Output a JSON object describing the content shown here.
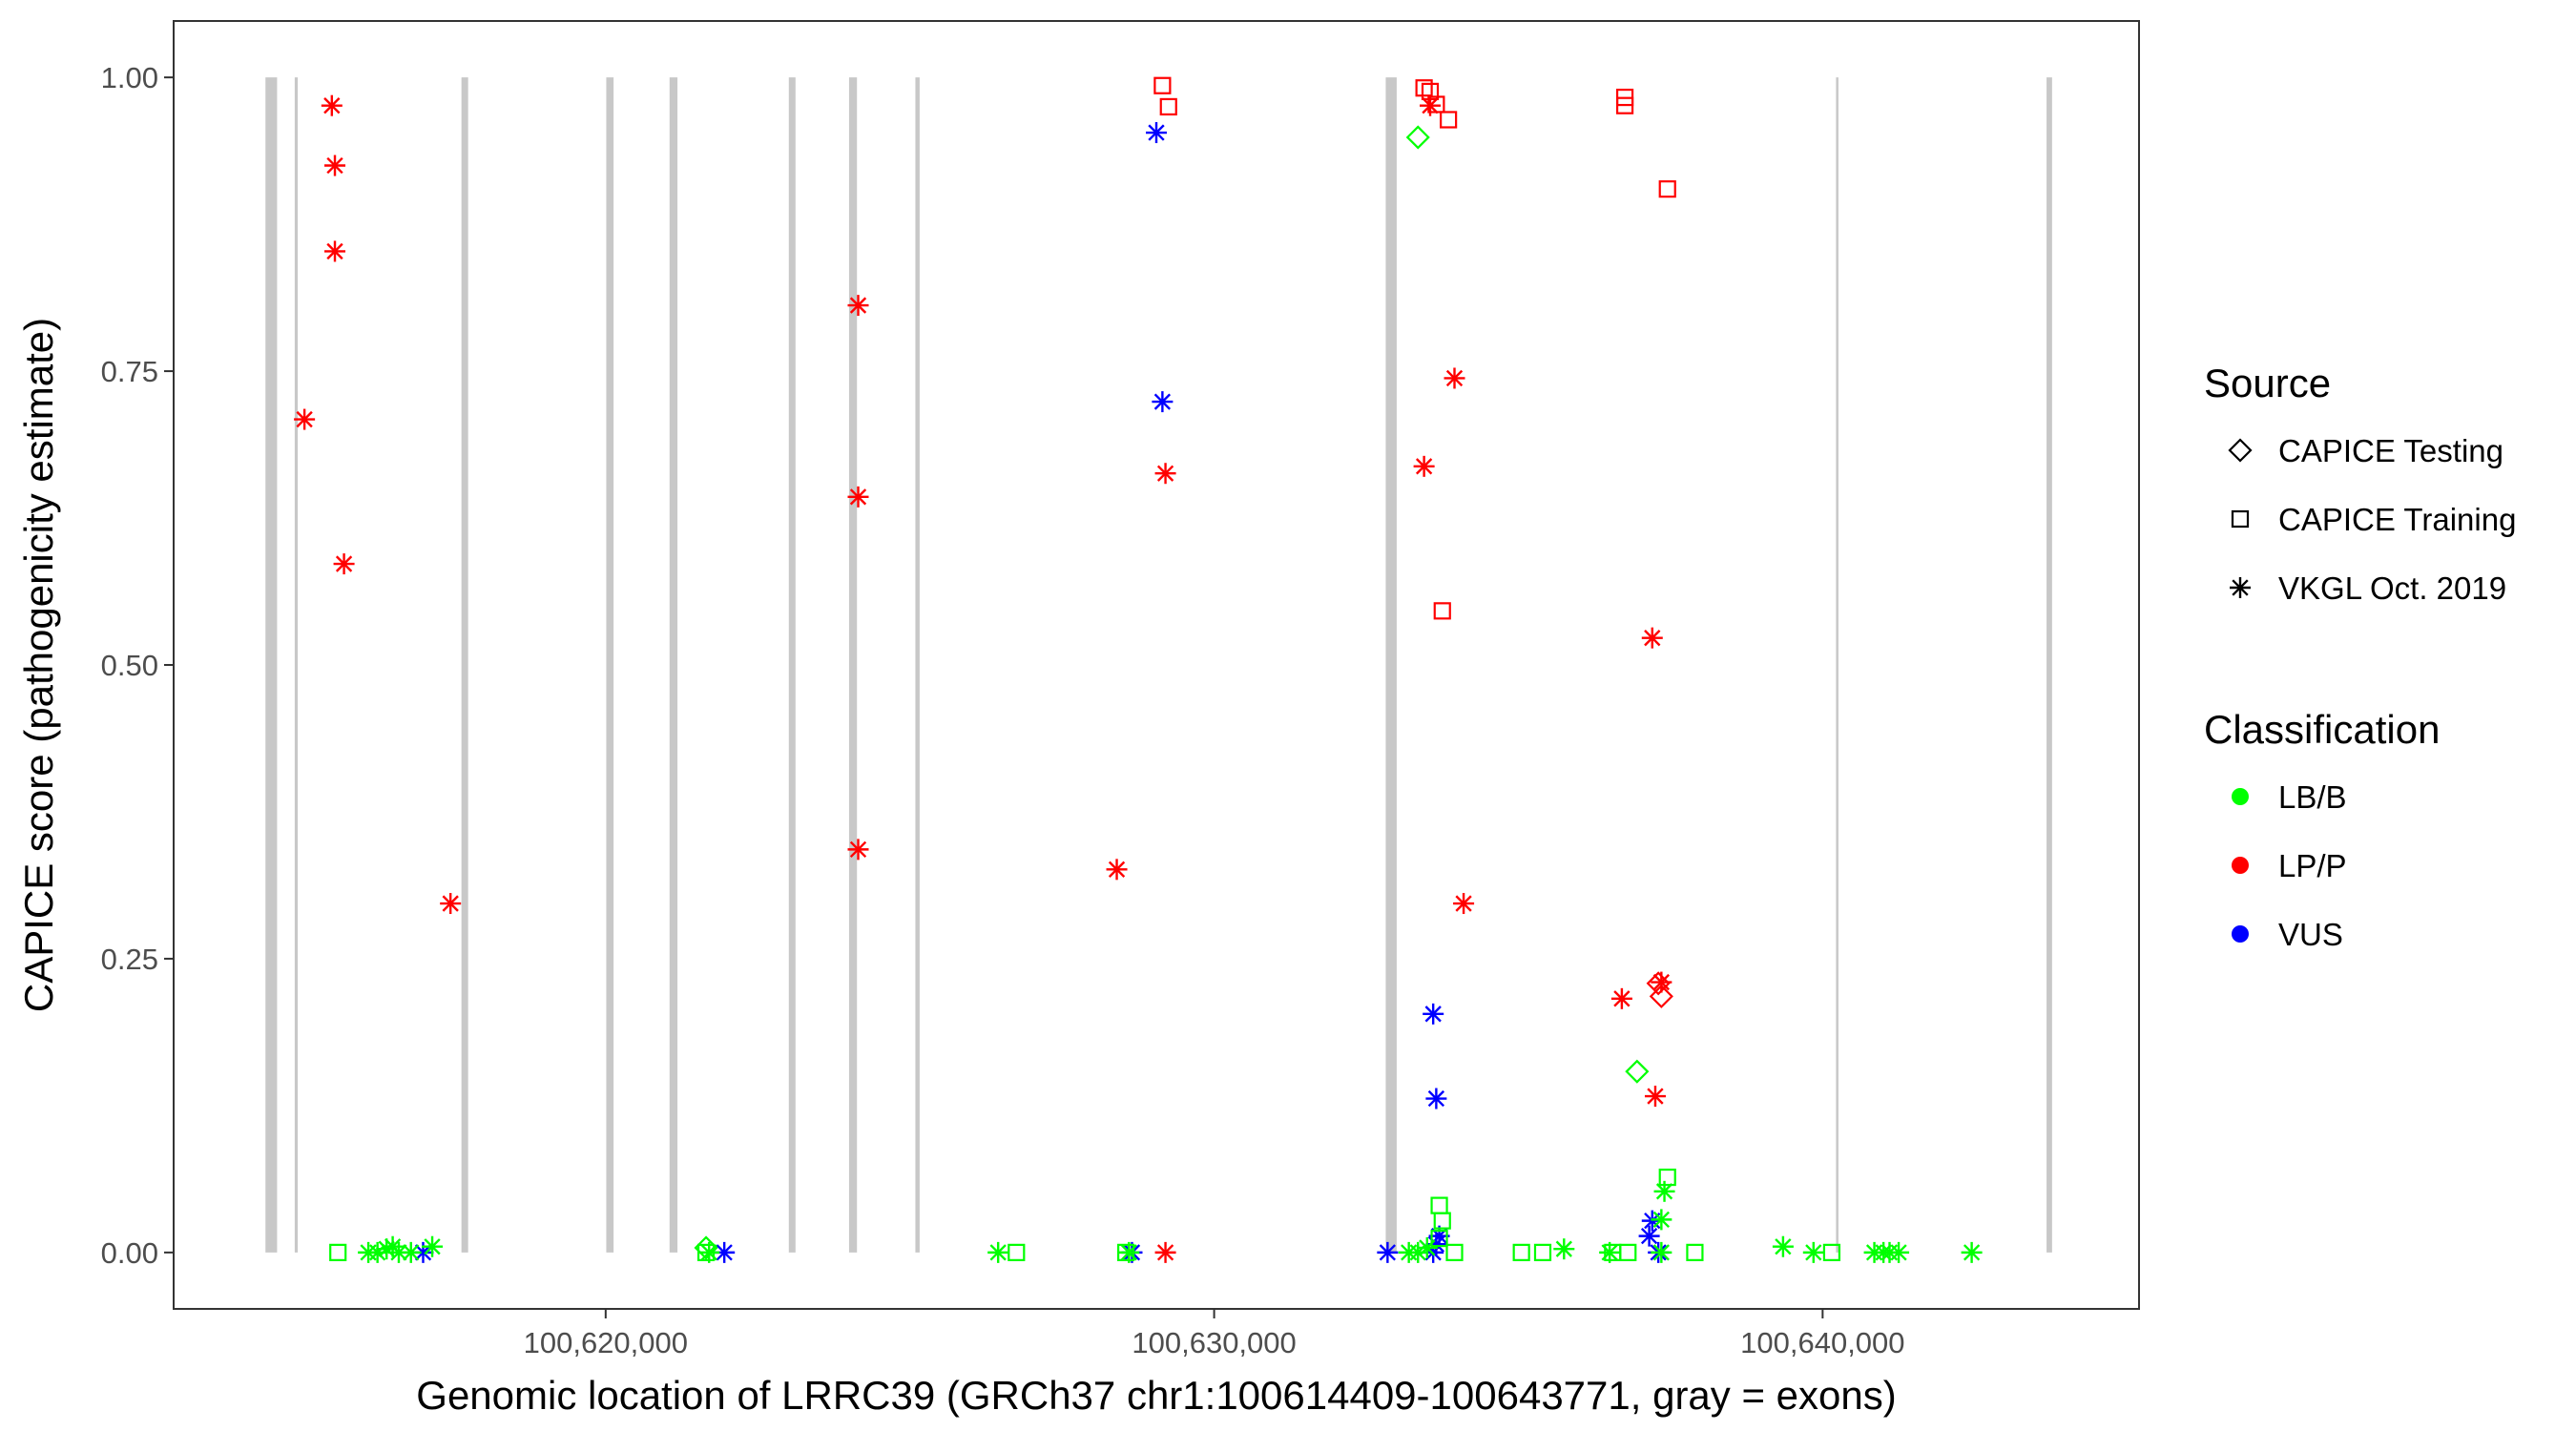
{
  "chart_data": {
    "type": "scatter",
    "xlabel": "Genomic location of LRRC39 (GRCh37 chr1:100614409-100643771, gray = exons)",
    "ylabel": "CAPICE score (pathogenicity estimate)",
    "xlim": [
      100612900,
      100645200
    ],
    "ylim": [
      -0.048,
      1.048
    ],
    "x_ticks": [
      100620000,
      100630000,
      100640000
    ],
    "x_tick_labels": [
      "100,620,000",
      "100,630,000",
      "100,640,000"
    ],
    "y_ticks": [
      0.0,
      0.25,
      0.5,
      0.75,
      1.0
    ],
    "y_tick_labels": [
      "0.00",
      "0.25",
      "0.50",
      "0.75",
      "1.00"
    ],
    "grid": false,
    "exons": [
      {
        "start": 100614409,
        "end": 100614600
      },
      {
        "start": 100614890,
        "end": 100614940
      },
      {
        "start": 100617630,
        "end": 100617740
      },
      {
        "start": 100620010,
        "end": 100620130
      },
      {
        "start": 100621050,
        "end": 100621180
      },
      {
        "start": 100623010,
        "end": 100623120
      },
      {
        "start": 100624000,
        "end": 100624130
      },
      {
        "start": 100625090,
        "end": 100625160
      },
      {
        "start": 100632820,
        "end": 100633000
      },
      {
        "start": 100640220,
        "end": 100640260
      },
      {
        "start": 100643680,
        "end": 100643771
      }
    ],
    "legend": {
      "position": "right",
      "source_title": "Source",
      "source_items": [
        {
          "label": "CAPICE Testing",
          "shape": "diamond"
        },
        {
          "label": "CAPICE Training",
          "shape": "square"
        },
        {
          "label": "VKGL Oct. 2019",
          "shape": "asterisk"
        }
      ],
      "class_title": "Classification",
      "class_items": [
        {
          "label": "LB/B",
          "color": "#00ff00"
        },
        {
          "label": "LP/P",
          "color": "#ff0000"
        },
        {
          "label": "VUS",
          "color": "#0000ff"
        }
      ]
    },
    "series": [
      {
        "source": "VKGL Oct. 2019",
        "classification": "LP/P",
        "color": "#ff0000",
        "shape": "asterisk",
        "points": [
          [
            100615500,
            0.976
          ],
          [
            100615550,
            0.925
          ],
          [
            100615550,
            0.852
          ],
          [
            100615050,
            0.709
          ],
          [
            100615700,
            0.586
          ],
          [
            100617450,
            0.297
          ],
          [
            100624150,
            0.806
          ],
          [
            100624150,
            0.643
          ],
          [
            100624150,
            0.343
          ],
          [
            100628400,
            0.326
          ],
          [
            100629200,
            0.663
          ],
          [
            100629200,
            0.0
          ],
          [
            100633550,
            0.976
          ],
          [
            100633950,
            0.744
          ],
          [
            100633450,
            0.669
          ],
          [
            100634100,
            0.297
          ],
          [
            100636700,
            0.216
          ],
          [
            100637200,
            0.523
          ],
          [
            100637250,
            0.133
          ],
          [
            100637350,
            0.23
          ]
        ]
      },
      {
        "source": "VKGL Oct. 2019",
        "classification": "VUS",
        "color": "#0000ff",
        "shape": "asterisk",
        "points": [
          [
            100629050,
            0.953
          ],
          [
            100629150,
            0.724
          ],
          [
            100633600,
            0.203
          ],
          [
            100633650,
            0.131
          ],
          [
            100633600,
            0.0
          ],
          [
            100633650,
            0.007
          ],
          [
            100633700,
            0.014
          ],
          [
            100632850,
            0.0
          ],
          [
            100628650,
            0.0
          ],
          [
            100621950,
            0.0
          ],
          [
            100617000,
            0.0
          ],
          [
            100637150,
            0.014
          ],
          [
            100637200,
            0.027
          ],
          [
            100637300,
            0.0
          ]
        ]
      },
      {
        "source": "VKGL Oct. 2019",
        "classification": "LB/B",
        "color": "#00ff00",
        "shape": "asterisk",
        "points": [
          [
            100616100,
            0.0
          ],
          [
            100616250,
            0.0
          ],
          [
            100616400,
            0.003
          ],
          [
            100616500,
            0.005
          ],
          [
            100616600,
            0.0
          ],
          [
            100616800,
            0.0
          ],
          [
            100617150,
            0.005
          ],
          [
            100621700,
            0.0
          ],
          [
            100626450,
            0.0
          ],
          [
            100628600,
            0.0
          ],
          [
            100633200,
            0.0
          ],
          [
            100633350,
            0.0
          ],
          [
            100633500,
            0.004
          ],
          [
            100635750,
            0.003
          ],
          [
            100636500,
            0.0
          ],
          [
            100637350,
            0.028
          ],
          [
            100637400,
            0.052
          ],
          [
            100637350,
            0.0
          ],
          [
            100639350,
            0.005
          ],
          [
            100639850,
            0.0
          ],
          [
            100640850,
            0.0
          ],
          [
            100641000,
            0.0
          ],
          [
            100641100,
            0.0
          ],
          [
            100641250,
            0.0
          ],
          [
            100642450,
            0.0
          ]
        ]
      },
      {
        "source": "CAPICE Training",
        "classification": "LP/P",
        "color": "#ff0000",
        "shape": "square",
        "points": [
          [
            100629150,
            0.993
          ],
          [
            100629250,
            0.975
          ],
          [
            100633450,
            0.991
          ],
          [
            100633550,
            0.988
          ],
          [
            100633650,
            0.977
          ],
          [
            100633850,
            0.964
          ],
          [
            100636750,
            0.983
          ],
          [
            100636750,
            0.976
          ],
          [
            100637450,
            0.905
          ],
          [
            100633750,
            0.546
          ]
        ]
      },
      {
        "source": "CAPICE Training",
        "classification": "LB/B",
        "color": "#00ff00",
        "shape": "square",
        "points": [
          [
            100615600,
            0.0
          ],
          [
            100626750,
            0.0
          ],
          [
            100628550,
            0.0
          ],
          [
            100633700,
            0.04
          ],
          [
            100633750,
            0.027
          ],
          [
            100633700,
            0.012
          ],
          [
            100633950,
            0.0
          ],
          [
            100635050,
            0.0
          ],
          [
            100635400,
            0.0
          ],
          [
            100636550,
            0.0
          ],
          [
            100636800,
            0.0
          ],
          [
            100637450,
            0.064
          ],
          [
            100637900,
            0.0
          ],
          [
            100640150,
            0.0
          ],
          [
            100621650,
            0.0
          ]
        ]
      },
      {
        "source": "CAPICE Testing",
        "classification": "LB/B",
        "color": "#00ff00",
        "shape": "diamond",
        "points": [
          [
            100633350,
            0.949
          ],
          [
            100636950,
            0.154
          ],
          [
            100621650,
            0.004
          ]
        ]
      },
      {
        "source": "CAPICE Testing",
        "classification": "LP/P",
        "color": "#ff0000",
        "shape": "diamond",
        "points": [
          [
            100637300,
            0.229
          ],
          [
            100637350,
            0.218
          ]
        ]
      }
    ]
  }
}
